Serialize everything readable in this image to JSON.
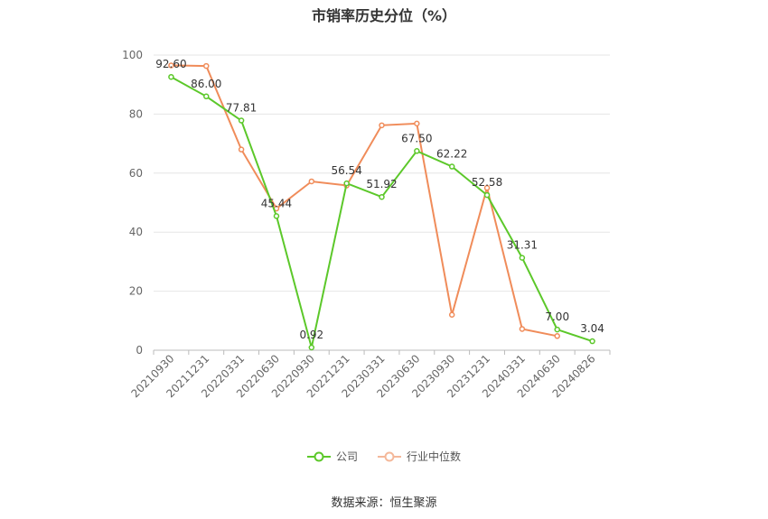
{
  "chart_data": {
    "type": "line",
    "title": "市销率历史分位（%）",
    "categories": [
      "20210930",
      "20211231",
      "20220331",
      "20220630",
      "20220930",
      "20221231",
      "20230331",
      "20230630",
      "20230930",
      "20231231",
      "20240331",
      "20240630",
      "20240826"
    ],
    "ylim": [
      0,
      100
    ],
    "yticks": [
      0,
      20,
      40,
      60,
      80,
      100
    ],
    "grid": true,
    "legend_position": "bottom",
    "series": [
      {
        "name": "公司",
        "color": "#5cc82a",
        "values": [
          92.6,
          86.0,
          77.81,
          45.44,
          0.92,
          56.54,
          51.92,
          67.5,
          62.22,
          52.58,
          31.31,
          7.0,
          3.04
        ],
        "labels": [
          "92.60",
          "86.00",
          "77.81",
          "45.44",
          "0.92",
          "56.54",
          "51.92",
          "67.50",
          "62.22",
          "52.58",
          "31.31",
          "7.00",
          "3.04"
        ]
      },
      {
        "name": "行业中位数",
        "color": "#f08c5a",
        "values": [
          96.5,
          96.3,
          68.0,
          48.0,
          57.2,
          55.8,
          76.2,
          76.8,
          12.0,
          55.0,
          7.2,
          4.8,
          null
        ]
      }
    ]
  },
  "legend": {
    "company": "公司",
    "industry": "行业中位数"
  },
  "source": "数据来源：恒生聚源"
}
